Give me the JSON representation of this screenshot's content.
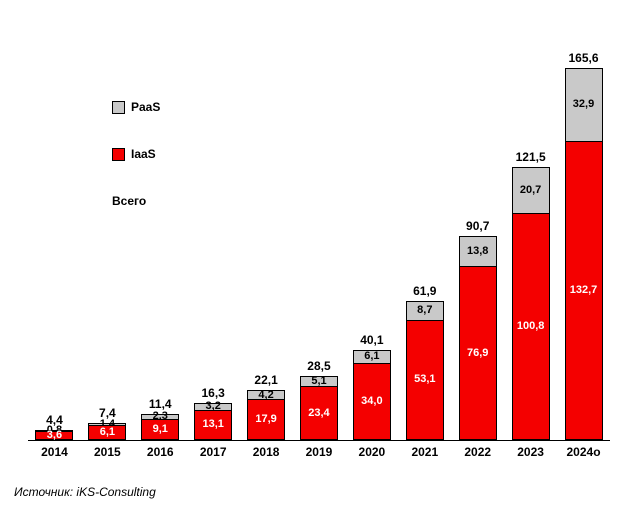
{
  "chart_data": {
    "type": "bar",
    "stacked": true,
    "title": "",
    "categories": [
      "2014",
      "2015",
      "2016",
      "2017",
      "2018",
      "2019",
      "2020",
      "2021",
      "2022",
      "2023",
      "2024о"
    ],
    "series": [
      {
        "name": "IaaS",
        "color": "#f40000",
        "values": [
          3.6,
          6.1,
          9.1,
          13.1,
          17.9,
          23.4,
          34.0,
          53.1,
          76.9,
          100.8,
          132.7
        ]
      },
      {
        "name": "PaaS",
        "color": "#c9c9c9",
        "values": [
          0.8,
          1.4,
          2.3,
          3.2,
          4.2,
          5.1,
          6.1,
          8.7,
          13.8,
          20.7,
          32.9
        ]
      }
    ],
    "totals": [
      4.4,
      7.4,
      11.4,
      16.3,
      22.1,
      28.5,
      40.1,
      61.9,
      90.7,
      121.5,
      165.6
    ],
    "ylim": [
      0,
      170
    ],
    "grid": false,
    "legend_position": "upper-left",
    "decimal_separator": ",",
    "source": "Источник: iKS-Consulting"
  },
  "legend": {
    "paas_label": "PaaS",
    "iaas_label": "IaaS",
    "total_label": "Всего"
  }
}
